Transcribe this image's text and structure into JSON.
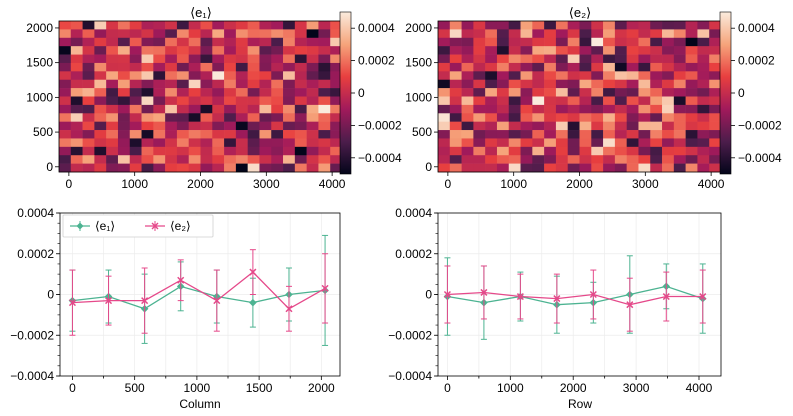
{
  "chart_data": [
    {
      "type": "heatmap",
      "title": "⟨e₁⟩",
      "x_ticks": [
        "0",
        "1000",
        "2000",
        "3000",
        "4000"
      ],
      "y_ticks": [
        "0",
        "500",
        "1000",
        "1500",
        "2000"
      ],
      "xlim": [
        -150,
        4150
      ],
      "ylim": [
        -75,
        2100
      ],
      "grid_rows": 18,
      "grid_cols": 24,
      "seed": 7,
      "colorbar": {
        "ticks": [
          "0.0004",
          "0.0002",
          "0",
          "−0.0002",
          "−0.0004"
        ],
        "tick_values": [
          0.0004,
          0.0002,
          0,
          -0.0002,
          -0.0004
        ],
        "range": [
          -0.0005,
          0.0005
        ]
      }
    },
    {
      "type": "heatmap",
      "title": "⟨e₂⟩",
      "x_ticks": [
        "0",
        "1000",
        "2000",
        "3000",
        "4000"
      ],
      "y_ticks": [
        "0",
        "500",
        "1000",
        "1500",
        "2000"
      ],
      "xlim": [
        -150,
        4150
      ],
      "ylim": [
        -75,
        2100
      ],
      "grid_rows": 18,
      "grid_cols": 24,
      "seed": 23,
      "colorbar": {
        "ticks": [
          "0.0004",
          "0.0002",
          "0",
          "−0.0002",
          "−0.0004"
        ],
        "tick_values": [
          0.0004,
          0.0002,
          0,
          -0.0002,
          -0.0004
        ],
        "range": [
          -0.0005,
          0.0005
        ]
      }
    },
    {
      "type": "line",
      "xlabel": "Column",
      "ylabel": "",
      "xlim": [
        -100,
        2150
      ],
      "ylim": [
        -0.0004,
        0.0004
      ],
      "x_ticks": [
        0,
        250,
        500,
        750,
        1000,
        1250,
        1500,
        1750,
        2000
      ],
      "x_tick_labels": [
        "0",
        "",
        "500",
        "",
        "1000",
        "",
        "1500",
        "",
        "2000"
      ],
      "y_ticks": [
        -0.0004,
        -0.0002,
        0,
        0.0002,
        0.0004
      ],
      "y_tick_labels": [
        "−0.0004",
        "−0.0002",
        "0",
        "0.0002",
        "0.0004"
      ],
      "legend": {
        "position": "upper-left",
        "entries": [
          "⟨e₁⟩",
          "⟨e₂⟩"
        ]
      },
      "series": [
        {
          "name": "⟨e₁⟩",
          "color": "#4cb391",
          "marker": "diamond",
          "x": [
            0,
            290,
            580,
            870,
            1160,
            1450,
            1740,
            2030
          ],
          "y": [
            -3e-05,
            -1e-05,
            -7e-05,
            4e-05,
            -1e-05,
            -4e-05,
            0.0,
            2e-05
          ],
          "err": [
            0.00015,
            0.00013,
            0.00017,
            0.00012,
            0.00013,
            0.00012,
            0.00013,
            0.00027
          ]
        },
        {
          "name": "⟨e₂⟩",
          "color": "#e5498a",
          "marker": "x",
          "x": [
            0,
            290,
            580,
            870,
            1160,
            1450,
            1740,
            2030
          ],
          "y": [
            -4e-05,
            -3e-05,
            -3e-05,
            7e-05,
            -3e-05,
            0.00011,
            -7e-05,
            3e-05
          ],
          "err": [
            0.00016,
            0.00012,
            0.00016,
            0.0001,
            0.00015,
            0.00011,
            0.00011,
            0.00017
          ]
        }
      ]
    },
    {
      "type": "line",
      "xlabel": "Row",
      "ylabel": "",
      "xlim": [
        -150,
        4350
      ],
      "ylim": [
        -0.0004,
        0.0004
      ],
      "x_ticks": [
        0,
        500,
        1000,
        1500,
        2000,
        2500,
        3000,
        3500,
        4000
      ],
      "x_tick_labels": [
        "0",
        "",
        "1000",
        "",
        "2000",
        "",
        "3000",
        "",
        "4000"
      ],
      "y_ticks": [
        -0.0004,
        -0.0002,
        0,
        0.0002,
        0.0004
      ],
      "y_tick_labels": [
        "−0.0004",
        "−0.0002",
        "0",
        "0.0002",
        "0.0004"
      ],
      "series": [
        {
          "name": "⟨e₁⟩",
          "color": "#4cb391",
          "marker": "diamond",
          "x": [
            0,
            580,
            1160,
            1740,
            2320,
            2900,
            3480,
            4060
          ],
          "y": [
            -1e-05,
            -4e-05,
            -1e-05,
            -5e-05,
            -4e-05,
            0.0,
            4e-05,
            -2e-05
          ],
          "err": [
            0.00019,
            0.00018,
            0.00012,
            0.00014,
            0.0001,
            0.00019,
            0.00011,
            0.00017
          ]
        },
        {
          "name": "⟨e₂⟩",
          "color": "#e5498a",
          "marker": "x",
          "x": [
            0,
            580,
            1160,
            1740,
            2320,
            2900,
            3480,
            4060
          ],
          "y": [
            0.0,
            1e-05,
            -1e-05,
            -2e-05,
            0.0,
            -5e-05,
            -1e-05,
            -1e-05
          ],
          "err": [
            0.00014,
            0.00013,
            0.00011,
            0.00012,
            0.00012,
            0.00013,
            0.00012,
            0.00013
          ]
        }
      ]
    }
  ]
}
